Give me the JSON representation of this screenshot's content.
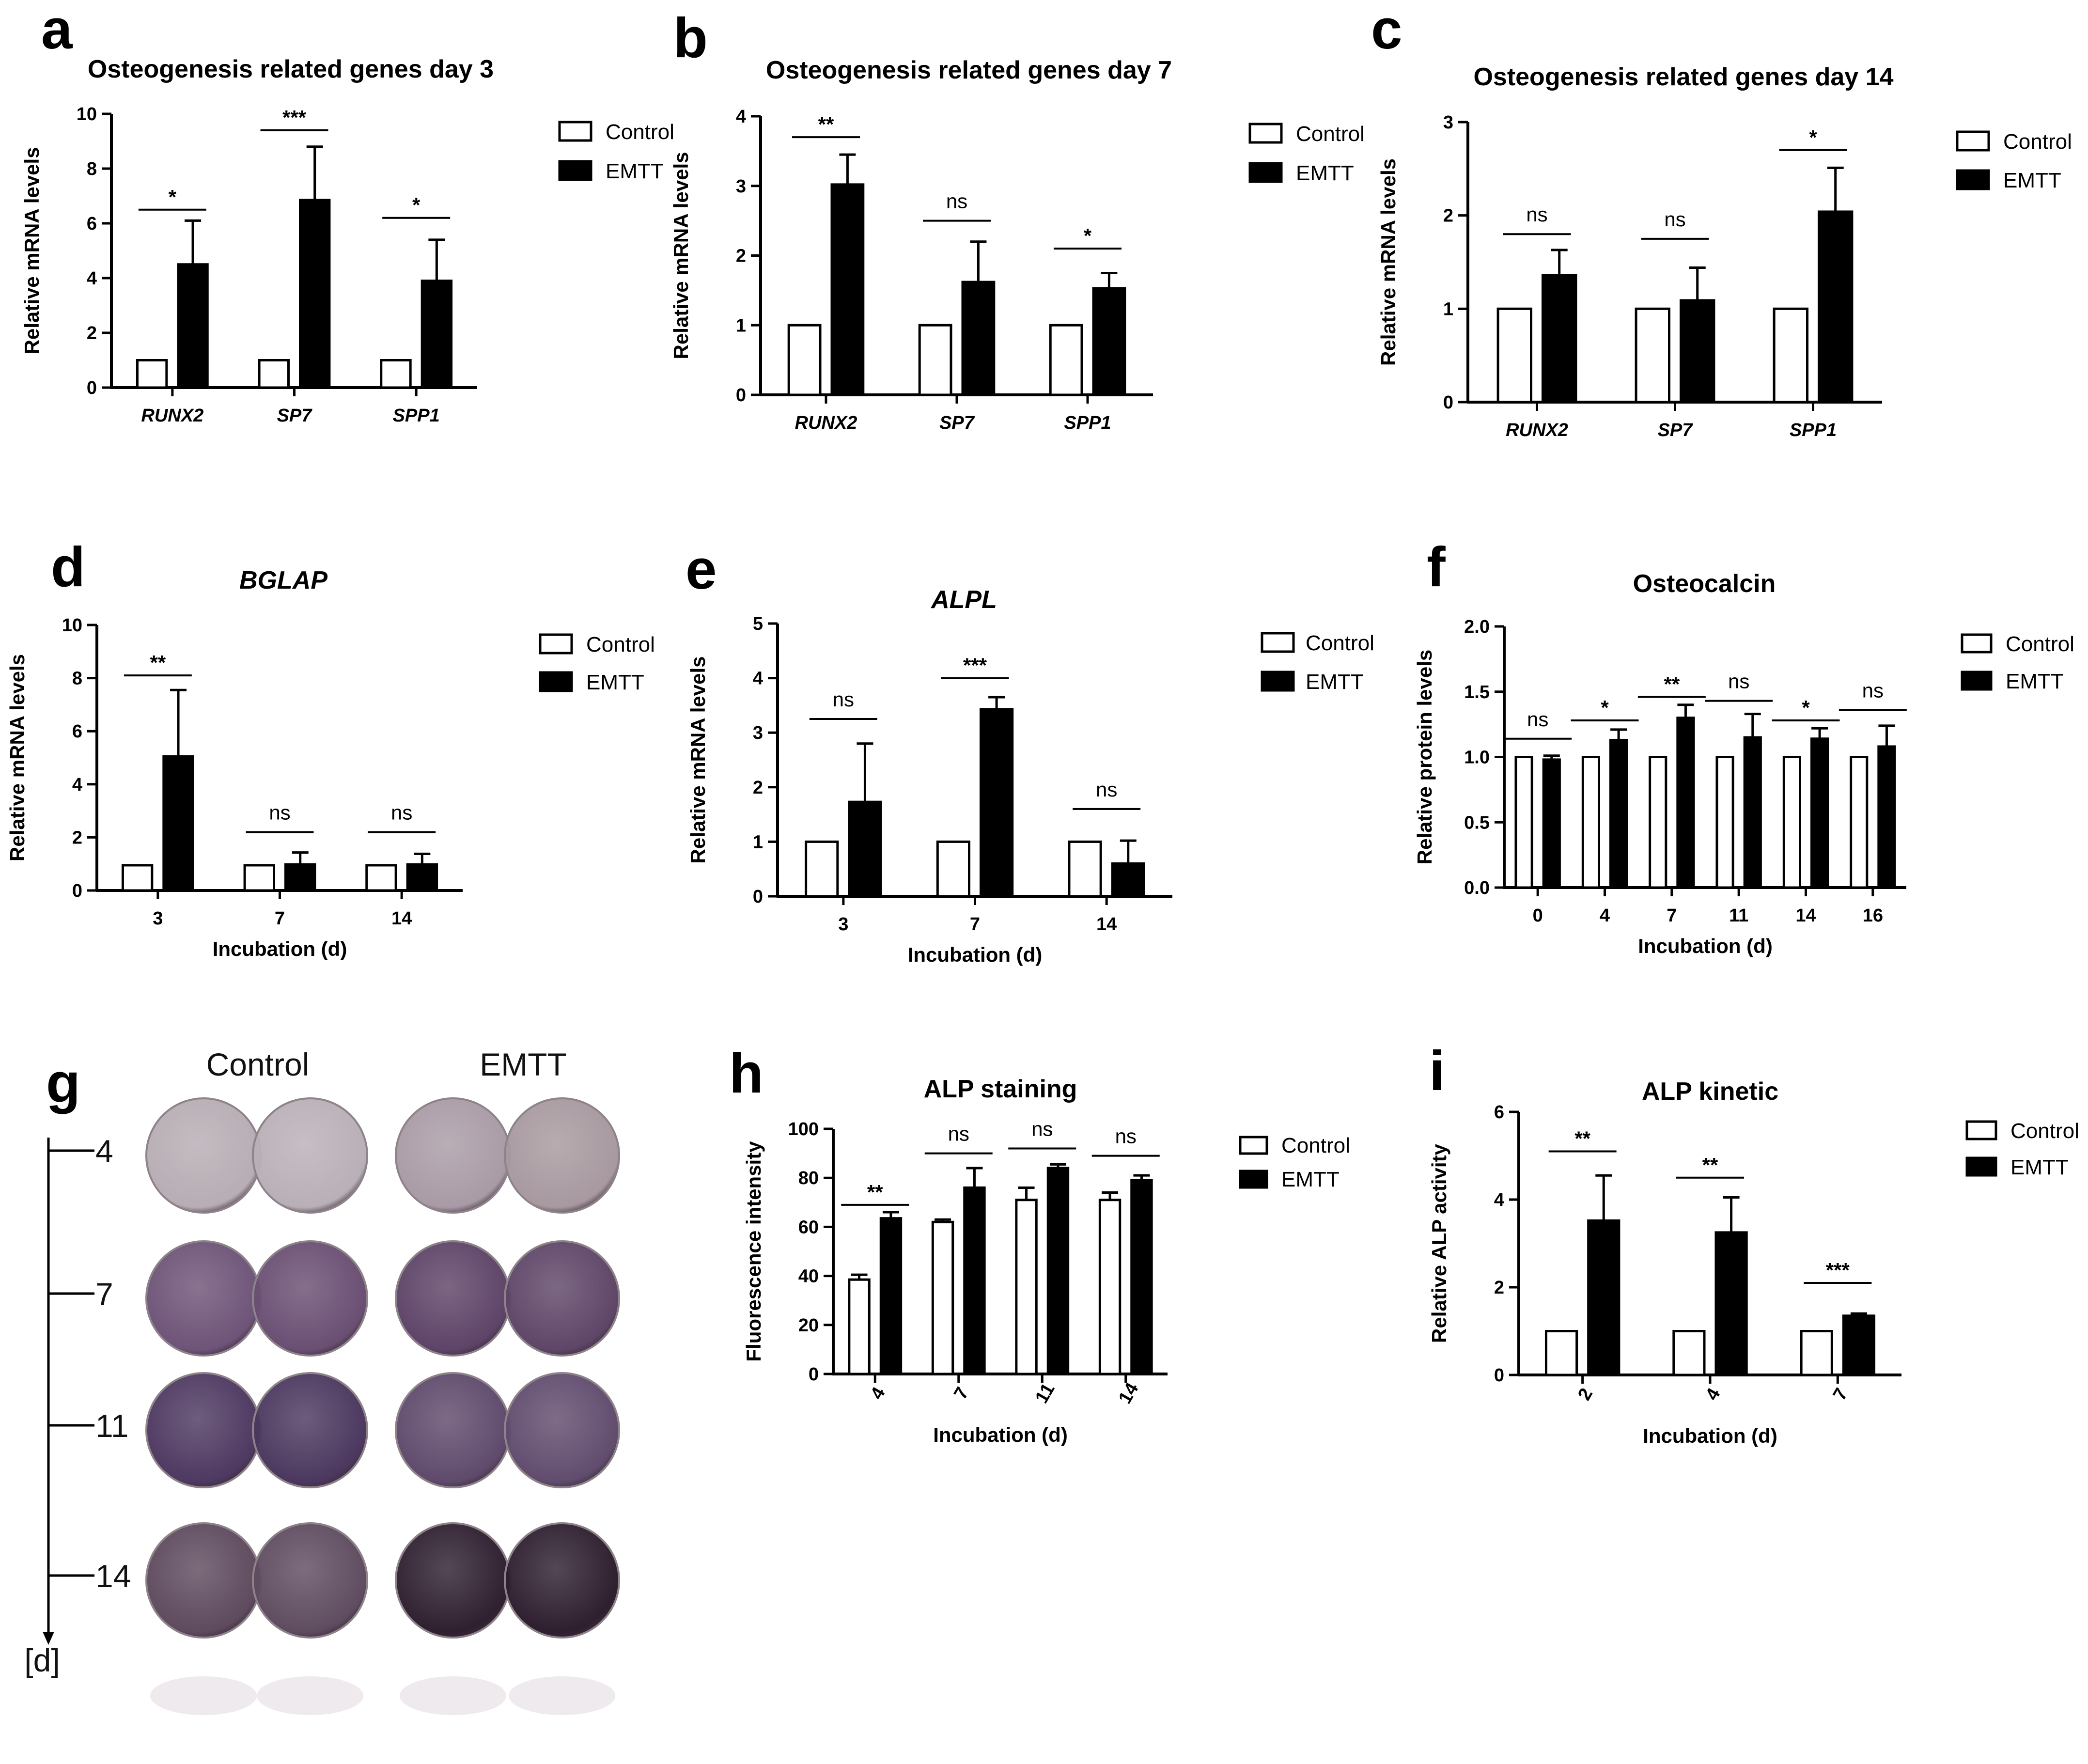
{
  "legend": {
    "control": "Control",
    "emtt": "EMTT"
  },
  "colors": {
    "control_fill": "#ffffff",
    "emtt_fill": "#000000",
    "axis": "#000000"
  },
  "chart_data": [
    {
      "panel": "a",
      "type": "bar",
      "title": "Osteogenesis related genes day 3",
      "title_italic": false,
      "categories": [
        "RUNX2",
        "SP7",
        "SPP1"
      ],
      "categories_italic": true,
      "xlabel": "",
      "ylabel": "Relative mRNA levels",
      "ylim": [
        0,
        10
      ],
      "yticks": [
        "0",
        "2",
        "4",
        "6",
        "8",
        "10"
      ],
      "ytick_values": [
        0,
        2,
        4,
        6,
        8,
        10
      ],
      "series": [
        {
          "name": "Control",
          "values": [
            1,
            1,
            1
          ],
          "errors": [
            0,
            0,
            0
          ]
        },
        {
          "name": "EMTT",
          "values": [
            4.5,
            6.85,
            3.9
          ],
          "errors": [
            1.6,
            1.95,
            1.5
          ]
        }
      ],
      "significance": [
        "*",
        "***",
        "*"
      ],
      "sig_levels": [
        6.5,
        9.4,
        6.2
      ]
    },
    {
      "panel": "b",
      "type": "bar",
      "title": "Osteogenesis related genes day 7",
      "title_italic": false,
      "categories": [
        "RUNX2",
        "SP7",
        "SPP1"
      ],
      "categories_italic": true,
      "xlabel": "",
      "ylabel": "Relative mRNA levels",
      "ylim": [
        0,
        4
      ],
      "yticks": [
        "0",
        "1",
        "2",
        "3",
        "4"
      ],
      "ytick_values": [
        0,
        1,
        2,
        3,
        4
      ],
      "series": [
        {
          "name": "Control",
          "values": [
            1,
            1,
            1
          ],
          "errors": [
            0,
            0,
            0
          ]
        },
        {
          "name": "EMTT",
          "values": [
            3.02,
            1.62,
            1.53
          ],
          "errors": [
            0.43,
            0.58,
            0.22
          ]
        }
      ],
      "significance": [
        "**",
        "ns",
        "*"
      ],
      "sig_levels": [
        3.7,
        2.5,
        2.1
      ]
    },
    {
      "panel": "c",
      "type": "bar",
      "title": "Osteogenesis related genes day 14",
      "title_italic": false,
      "categories": [
        "RUNX2",
        "SP7",
        "SPP1"
      ],
      "categories_italic": true,
      "xlabel": "",
      "ylabel": "Relative mRNA levels",
      "ylim": [
        0,
        3
      ],
      "yticks": [
        "0",
        "1",
        "2",
        "3"
      ],
      "ytick_values": [
        0,
        1,
        2,
        3
      ],
      "series": [
        {
          "name": "Control",
          "values": [
            1,
            1,
            1
          ],
          "errors": [
            0,
            0,
            0
          ]
        },
        {
          "name": "EMTT",
          "values": [
            1.36,
            1.09,
            2.04
          ],
          "errors": [
            0.27,
            0.35,
            0.47
          ]
        }
      ],
      "significance": [
        "ns",
        "ns",
        "*"
      ],
      "sig_levels": [
        1.8,
        1.75,
        2.7
      ]
    },
    {
      "panel": "d",
      "type": "bar",
      "title": "BGLAP",
      "title_italic": true,
      "categories": [
        "3",
        "7",
        "14"
      ],
      "categories_italic": false,
      "xlabel": "Incubation (d)",
      "ylabel": "Relative mRNA levels",
      "ylim": [
        0,
        10
      ],
      "yticks": [
        "0",
        "2",
        "4",
        "6",
        "8",
        "10"
      ],
      "ytick_values": [
        0,
        2,
        4,
        6,
        8,
        10
      ],
      "series": [
        {
          "name": "Control",
          "values": [
            0.95,
            0.95,
            0.95
          ],
          "errors": [
            0,
            0,
            0
          ]
        },
        {
          "name": "EMTT",
          "values": [
            5.05,
            0.98,
            0.98
          ],
          "errors": [
            2.5,
            0.45,
            0.4
          ]
        }
      ],
      "significance": [
        "**",
        "ns",
        "ns"
      ],
      "sig_levels": [
        8.1,
        2.2,
        2.2
      ]
    },
    {
      "panel": "e",
      "type": "bar",
      "title": "ALPL",
      "title_italic": true,
      "categories": [
        "3",
        "7",
        "14"
      ],
      "categories_italic": false,
      "xlabel": "Incubation (d)",
      "ylabel": "Relative mRNA levels",
      "ylim": [
        0,
        5
      ],
      "yticks": [
        "0",
        "1",
        "2",
        "3",
        "4",
        "5"
      ],
      "ytick_values": [
        0,
        1,
        2,
        3,
        4,
        5
      ],
      "series": [
        {
          "name": "Control",
          "values": [
            1,
            1,
            1
          ],
          "errors": [
            0,
            0,
            0
          ]
        },
        {
          "name": "EMTT",
          "values": [
            1.73,
            3.43,
            0.6
          ],
          "errors": [
            1.07,
            0.22,
            0.42
          ]
        }
      ],
      "significance": [
        "ns",
        "***",
        "ns"
      ],
      "sig_levels": [
        3.25,
        4.0,
        1.6
      ]
    },
    {
      "panel": "f",
      "type": "bar",
      "title": "Osteocalcin",
      "title_italic": false,
      "categories": [
        "0",
        "4",
        "7",
        "11",
        "14",
        "16"
      ],
      "categories_italic": false,
      "xlabel": "Incubation (d)",
      "ylabel": "Relative protein levels",
      "ylim": [
        0,
        2.0
      ],
      "yticks": [
        "0.0",
        "0.5",
        "1.0",
        "1.5",
        "2.0"
      ],
      "ytick_values": [
        0,
        0.5,
        1.0,
        1.5,
        2.0
      ],
      "series": [
        {
          "name": "Control",
          "values": [
            1,
            1,
            1,
            1,
            1,
            1
          ],
          "errors": [
            0,
            0,
            0,
            0,
            0,
            0
          ]
        },
        {
          "name": "EMTT",
          "values": [
            0.98,
            1.13,
            1.3,
            1.15,
            1.14,
            1.08
          ],
          "errors": [
            0.03,
            0.08,
            0.1,
            0.18,
            0.08,
            0.16
          ]
        }
      ],
      "significance": [
        "ns",
        "*",
        "**",
        "ns",
        "*",
        "ns"
      ],
      "sig_levels": [
        1.14,
        1.28,
        1.46,
        1.43,
        1.28,
        1.36
      ]
    },
    {
      "panel": "h",
      "type": "bar",
      "title": "ALP staining",
      "title_italic": false,
      "categories": [
        "4",
        "7",
        "11",
        "14"
      ],
      "categories_italic": false,
      "xtick_rotate": true,
      "xlabel": "Incubation (d)",
      "ylabel": "Fluorescence intensity",
      "ylim": [
        0,
        100
      ],
      "yticks": [
        "0",
        "20",
        "40",
        "60",
        "80",
        "100"
      ],
      "ytick_values": [
        0,
        20,
        40,
        60,
        80,
        100
      ],
      "series": [
        {
          "name": "Control",
          "values": [
            38.5,
            62,
            71,
            71
          ],
          "errors": [
            2,
            1,
            5,
            3
          ]
        },
        {
          "name": "EMTT",
          "values": [
            63.5,
            76,
            84,
            79
          ],
          "errors": [
            2.5,
            8,
            1.5,
            2
          ]
        }
      ],
      "significance": [
        "**",
        "ns",
        "ns",
        "ns"
      ],
      "sig_levels": [
        69,
        90,
        92,
        89
      ]
    },
    {
      "panel": "i",
      "type": "bar",
      "title": "ALP kinetic",
      "title_italic": false,
      "categories": [
        "2",
        "4",
        "7"
      ],
      "categories_italic": false,
      "xtick_rotate": true,
      "xlabel": "Incubation (d)",
      "ylabel": "Relative ALP activity",
      "ylim": [
        0,
        6
      ],
      "yticks": [
        "0",
        "2",
        "4",
        "6"
      ],
      "ytick_values": [
        0,
        2,
        4,
        6
      ],
      "series": [
        {
          "name": "Control",
          "values": [
            1,
            1,
            1
          ],
          "errors": [
            0,
            0,
            0
          ]
        },
        {
          "name": "EMTT",
          "values": [
            3.52,
            3.25,
            1.35
          ],
          "errors": [
            1.03,
            0.8,
            0.05
          ]
        }
      ],
      "significance": [
        "**",
        "**",
        "***"
      ],
      "sig_levels": [
        5.1,
        4.5,
        2.1
      ]
    }
  ],
  "panel_g": {
    "panel": "g",
    "columns": [
      "Control",
      "EMTT"
    ],
    "days": [
      "4",
      "7",
      "11",
      "14"
    ],
    "axis_unit": "[d]",
    "well_colors": [
      [
        "#b7adb4",
        "#b9b0b7",
        "#a99ba6",
        "#a7999f"
      ],
      [
        "#6e5478",
        "#6a4f73",
        "#5e4468",
        "#5f4668"
      ],
      [
        "#4e3961",
        "#4c385f",
        "#5f4a6c",
        "#614c6e"
      ],
      [
        "#5e4b5e",
        "#5f4c60",
        "#2f2030",
        "#2e1f2f"
      ]
    ]
  }
}
